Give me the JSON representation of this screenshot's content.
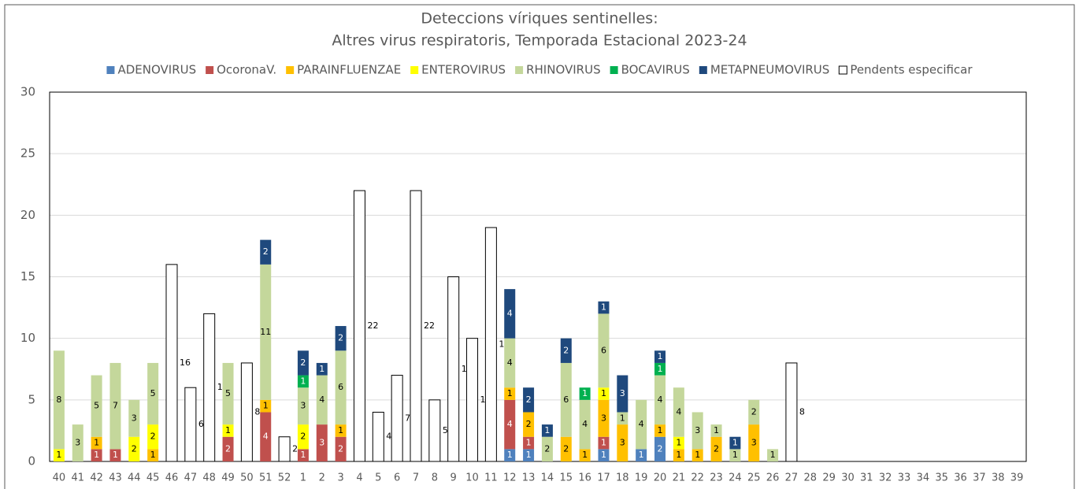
{
  "chart_data": {
    "type": "stacked_bar",
    "title": "Deteccions víriques sentinelles:",
    "subtitle": "Altres virus respiratoris,  Temporada Estacional 2023-24",
    "categories": [
      "40",
      "41",
      "42",
      "43",
      "44",
      "45",
      "46",
      "47",
      "48",
      "49",
      "50",
      "51",
      "52",
      "1",
      "2",
      "3",
      "4",
      "5",
      "6",
      "7",
      "8",
      "9",
      "10",
      "11",
      "12",
      "13",
      "14",
      "15",
      "16",
      "17",
      "18",
      "19",
      "20",
      "21",
      "22",
      "23",
      "24",
      "25",
      "26",
      "27",
      "28",
      "29",
      "30",
      "31",
      "32",
      "33",
      "34",
      "35",
      "36",
      "37",
      "38",
      "39"
    ],
    "series": [
      {
        "name": "ADENOVIRUS",
        "color": "#4f81bd",
        "values": [
          0,
          0,
          0,
          0,
          0,
          0,
          0,
          0,
          0,
          0,
          0,
          0,
          0,
          0,
          0,
          0,
          0,
          0,
          0,
          0,
          0,
          0,
          0,
          0,
          1,
          1,
          0,
          0,
          0,
          1,
          0,
          1,
          2,
          0,
          0,
          0,
          0,
          0,
          0,
          0,
          0,
          0,
          0,
          0,
          0,
          0,
          0,
          0,
          0,
          0,
          0,
          0
        ]
      },
      {
        "name": "OcoronaV.",
        "color": "#c0504d",
        "values": [
          0,
          0,
          1,
          1,
          0,
          0,
          0,
          0,
          0,
          2,
          0,
          4,
          0,
          1,
          3,
          2,
          0,
          0,
          0,
          0,
          0,
          0,
          0,
          0,
          4,
          1,
          0,
          0,
          0,
          1,
          0,
          0,
          0,
          0,
          0,
          0,
          0,
          0,
          0,
          0,
          0,
          0,
          0,
          0,
          0,
          0,
          0,
          0,
          0,
          0,
          0,
          0
        ]
      },
      {
        "name": "PARAINFLUENZAE",
        "color": "#ffc000",
        "values": [
          0,
          0,
          1,
          0,
          0,
          1,
          0,
          0,
          0,
          0,
          0,
          1,
          0,
          0,
          0,
          1,
          0,
          0,
          0,
          0,
          0,
          0,
          0,
          0,
          1,
          2,
          0,
          2,
          1,
          3,
          3,
          0,
          1,
          1,
          1,
          2,
          0,
          3,
          0,
          0,
          0,
          0,
          0,
          0,
          0,
          0,
          0,
          0,
          0,
          0,
          0,
          0
        ]
      },
      {
        "name": "ENTEROVIRUS",
        "color": "#ffff00",
        "values": [
          1,
          0,
          0,
          0,
          2,
          2,
          0,
          0,
          0,
          1,
          0,
          0,
          0,
          2,
          0,
          0,
          0,
          0,
          0,
          0,
          0,
          0,
          0,
          0,
          0,
          0,
          0,
          0,
          0,
          1,
          0,
          0,
          0,
          1,
          0,
          0,
          0,
          0,
          0,
          0,
          0,
          0,
          0,
          0,
          0,
          0,
          0,
          0,
          0,
          0,
          0,
          0
        ]
      },
      {
        "name": "RHINOVIRUS",
        "color": "#c4d79b",
        "values": [
          8,
          3,
          5,
          7,
          3,
          5,
          0,
          0,
          0,
          5,
          0,
          11,
          0,
          3,
          4,
          6,
          0,
          0,
          0,
          0,
          0,
          0,
          0,
          0,
          4,
          0,
          2,
          6,
          4,
          6,
          1,
          4,
          4,
          4,
          3,
          1,
          1,
          2,
          1,
          0,
          0,
          0,
          0,
          0,
          0,
          0,
          0,
          0,
          0,
          0,
          0,
          0
        ]
      },
      {
        "name": "BOCAVIRUS",
        "color": "#00b050",
        "values": [
          0,
          0,
          0,
          0,
          0,
          0,
          0,
          0,
          0,
          0,
          0,
          0,
          0,
          1,
          0,
          0,
          0,
          0,
          0,
          0,
          0,
          0,
          0,
          0,
          0,
          0,
          0,
          0,
          1,
          0,
          0,
          0,
          1,
          0,
          0,
          0,
          0,
          0,
          0,
          0,
          0,
          0,
          0,
          0,
          0,
          0,
          0,
          0,
          0,
          0,
          0,
          0
        ]
      },
      {
        "name": "METAPNEUMOVIRUS",
        "color": "#1f497d",
        "values": [
          0,
          0,
          0,
          0,
          0,
          0,
          0,
          0,
          0,
          0,
          0,
          2,
          0,
          2,
          1,
          2,
          0,
          0,
          0,
          0,
          0,
          0,
          0,
          0,
          4,
          2,
          1,
          2,
          0,
          1,
          3,
          0,
          1,
          0,
          0,
          0,
          1,
          0,
          0,
          0,
          0,
          0,
          0,
          0,
          0,
          0,
          0,
          0,
          0,
          0,
          0,
          0
        ]
      },
      {
        "name": "Pendents especificar",
        "color": "#ffffff",
        "edgecolor": "#000000",
        "values": [
          0,
          0,
          0,
          0,
          0,
          0,
          16,
          6,
          12,
          0,
          8,
          0,
          2,
          0,
          0,
          0,
          22,
          4,
          7,
          22,
          5,
          15,
          10,
          19,
          0,
          0,
          0,
          0,
          0,
          0,
          0,
          0,
          0,
          0,
          0,
          0,
          0,
          0,
          0,
          8,
          0,
          0,
          0,
          0,
          0,
          0,
          0,
          0,
          0,
          0,
          0,
          0
        ]
      }
    ],
    "ylim": [
      0,
      30
    ],
    "yticks": [
      0,
      5,
      10,
      15,
      20,
      25,
      30
    ],
    "grid": true,
    "legend": "top"
  }
}
